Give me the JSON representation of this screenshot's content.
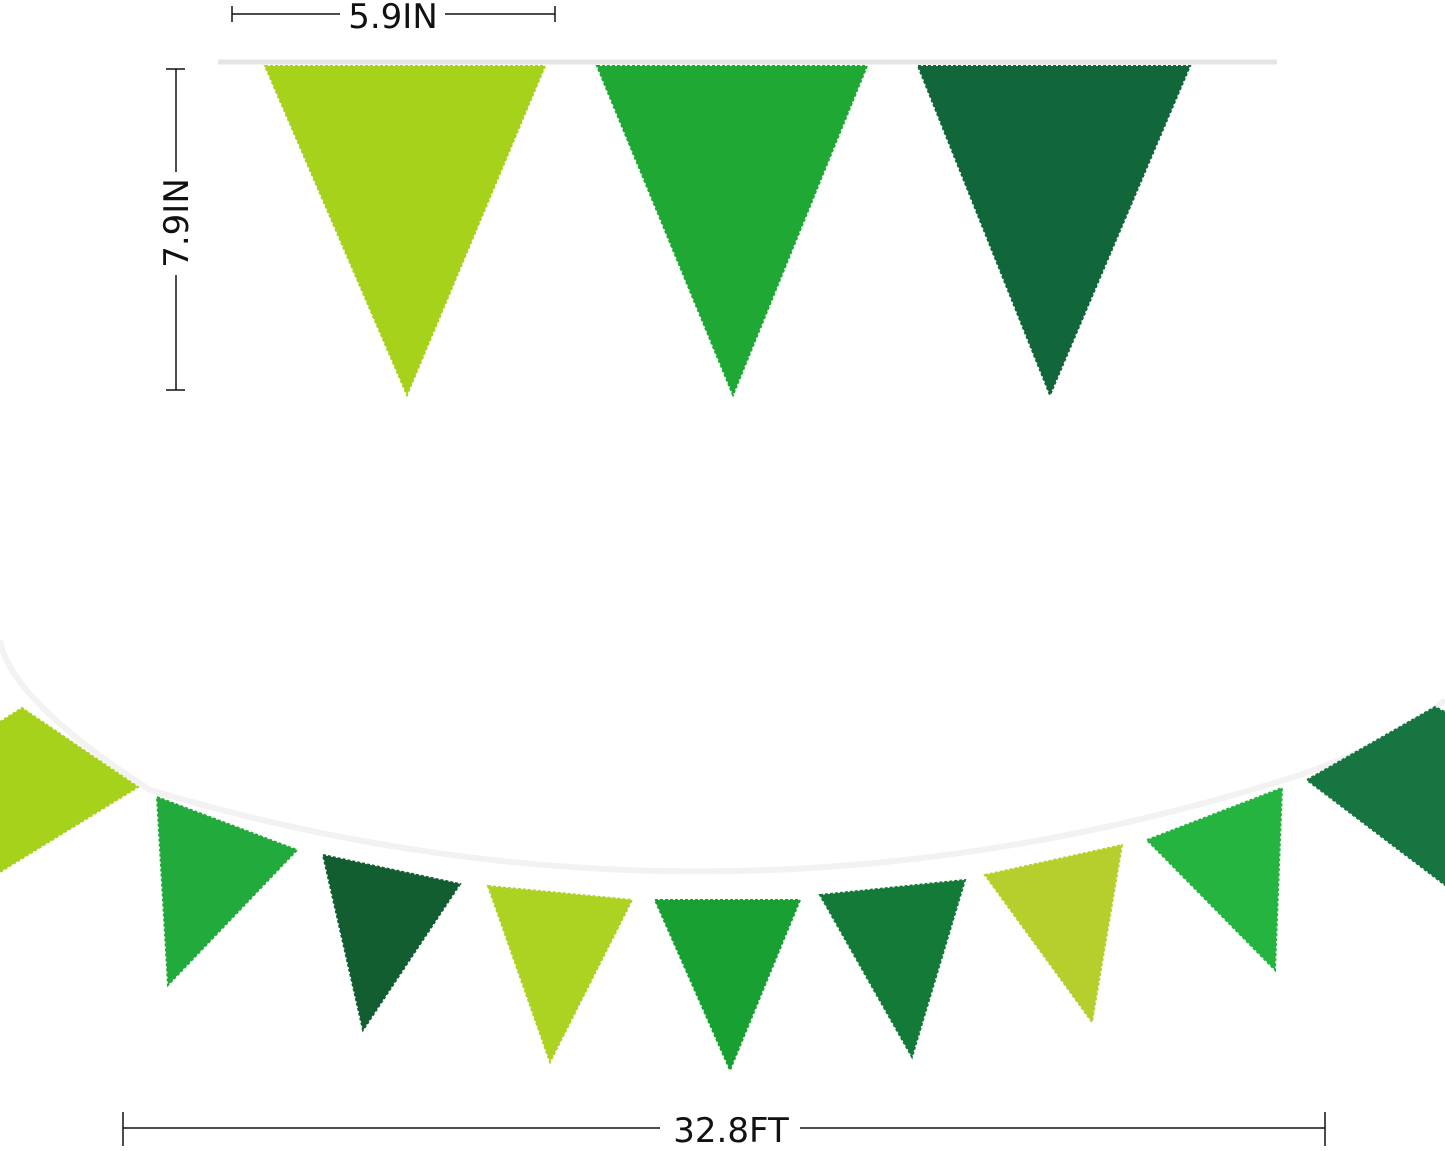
{
  "dimensions": {
    "flag_width": "5.9IN",
    "flag_height": "7.9IN",
    "total_length": "32.8FT"
  },
  "colors": {
    "light_green": "#a6d21c",
    "bright_green": "#1fa834",
    "dark_green": "#12673a",
    "yellow_green": "#b7cf2c"
  },
  "top_flags": [
    {
      "color": "#a6d21c"
    },
    {
      "color": "#1fa834"
    },
    {
      "color": "#12673a"
    }
  ],
  "bottom_flags": [
    {
      "color": "#a6d21c"
    },
    {
      "color": "#22aa3c"
    },
    {
      "color": "#125e30"
    },
    {
      "color": "#acd222"
    },
    {
      "color": "#19a033"
    },
    {
      "color": "#137a38"
    },
    {
      "color": "#b7cf2c"
    },
    {
      "color": "#25b440"
    },
    {
      "color": "#167540"
    }
  ]
}
